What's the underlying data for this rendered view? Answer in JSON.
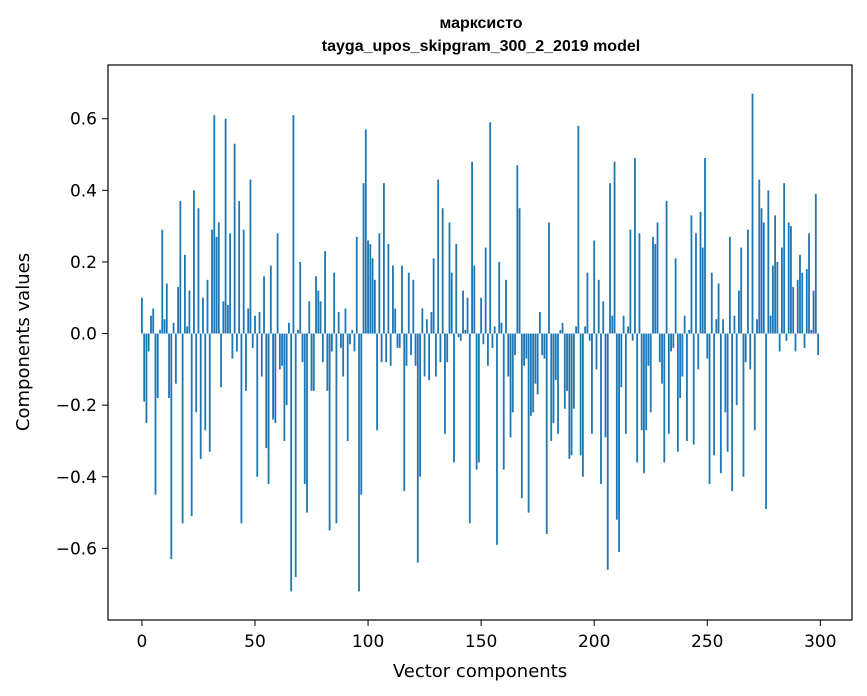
{
  "chart_data": {
    "type": "bar",
    "title": "марксисто",
    "subtitle": "tayga_upos_skipgram_300_2_2019 model",
    "xlabel": "Vector components",
    "ylabel": "Components values",
    "xlim": [
      -15,
      314
    ],
    "ylim": [
      -0.8,
      0.75
    ],
    "xticks": [
      0,
      50,
      100,
      150,
      200,
      250,
      300
    ],
    "yticks": [
      0.6,
      0.4,
      0.2,
      0.0,
      -0.2,
      -0.4,
      -0.6
    ],
    "xtick_labels": [
      "0",
      "50",
      "100",
      "150",
      "200",
      "250",
      "300"
    ],
    "ytick_labels": [
      "0.6",
      "0.4",
      "0.2",
      "0.0",
      "−0.2",
      "−0.4",
      "−0.6"
    ],
    "bar_color": "#1f77b4",
    "x_start": 0,
    "values": [
      0.1,
      -0.19,
      -0.25,
      -0.05,
      0.05,
      0.07,
      -0.45,
      -0.18,
      0.01,
      0.29,
      0.04,
      0.14,
      -0.18,
      -0.63,
      0.03,
      -0.14,
      0.13,
      0.37,
      -0.53,
      0.22,
      0.02,
      0.12,
      -0.51,
      0.4,
      -0.22,
      0.35,
      -0.35,
      0.1,
      -0.27,
      0.15,
      -0.33,
      0.29,
      0.61,
      0.27,
      0.31,
      -0.15,
      0.09,
      0.6,
      0.08,
      0.28,
      -0.07,
      0.53,
      -0.05,
      0.37,
      -0.53,
      0.29,
      -0.16,
      0.07,
      0.43,
      -0.04,
      0.05,
      -0.4,
      0.06,
      -0.12,
      0.16,
      -0.32,
      -0.42,
      0.19,
      -0.24,
      -0.25,
      0.28,
      -0.1,
      -0.09,
      -0.3,
      -0.2,
      0.03,
      -0.72,
      0.61,
      -0.68,
      0.01,
      0.2,
      -0.08,
      -0.42,
      -0.5,
      0.09,
      -0.16,
      -0.16,
      0.16,
      0.12,
      0.09,
      -0.08,
      0.23,
      -0.16,
      -0.55,
      -0.05,
      0.17,
      -0.53,
      0.06,
      -0.04,
      -0.12,
      0.07,
      -0.3,
      -0.03,
      0.01,
      -0.05,
      0.27,
      -0.72,
      -0.45,
      0.42,
      0.57,
      0.26,
      0.25,
      0.21,
      0.15,
      -0.27,
      0.28,
      -0.08,
      0.42,
      -0.08,
      0.25,
      -0.09,
      0.19,
      0.07,
      -0.04,
      -0.04,
      0.19,
      -0.44,
      -0.09,
      0.17,
      -0.06,
      0.15,
      -0.09,
      -0.64,
      -0.4,
      0.07,
      -0.12,
      0.04,
      -0.13,
      0.06,
      0.21,
      -0.12,
      0.43,
      -0.08,
      0.35,
      -0.28,
      -0.08,
      0.31,
      0.17,
      -0.36,
      0.25,
      -0.01,
      -0.02,
      0.12,
      0.01,
      0.1,
      -0.53,
      0.48,
      0.19,
      -0.38,
      -0.36,
      0.1,
      -0.03,
      0.24,
      -0.09,
      0.59,
      -0.04,
      0.02,
      -0.59,
      0.2,
      0.03,
      -0.38,
      0.15,
      -0.12,
      -0.29,
      -0.22,
      -0.06,
      0.47,
      0.35,
      -0.46,
      -0.09,
      -0.07,
      -0.5,
      -0.23,
      -0.22,
      -0.14,
      -0.17,
      0.06,
      -0.06,
      -0.07,
      -0.56,
      0.31,
      -0.3,
      -0.25,
      -0.13,
      -0.28,
      0.01,
      0.03,
      -0.21,
      -0.16,
      -0.35,
      -0.34,
      -0.21,
      0.02,
      0.58,
      -0.34,
      -0.4,
      0.02,
      0.17,
      -0.02,
      -0.28,
      0.26,
      -0.1,
      0.15,
      -0.42,
      0.09,
      -0.29,
      -0.66,
      0.42,
      0.05,
      0.48,
      -0.52,
      -0.61,
      -0.15,
      0.05,
      -0.28,
      0.02,
      0.29,
      -0.02,
      0.49,
      -0.36,
      0.28,
      -0.27,
      -0.39,
      -0.27,
      -0.09,
      -0.22,
      0.27,
      0.25,
      0.31,
      -0.08,
      -0.14,
      -0.36,
      0.37,
      -0.28,
      -0.05,
      -0.04,
      0.21,
      -0.33,
      -0.18,
      -0.12,
      0.05,
      -0.3,
      0.01,
      0.33,
      -0.31,
      0.28,
      -0.1,
      0.34,
      0.24,
      0.49,
      -0.07,
      -0.42,
      0.17,
      -0.34,
      0.04,
      0.14,
      -0.39,
      0.04,
      -0.22,
      -0.33,
      0.27,
      -0.44,
      0.05,
      -0.2,
      0.12,
      0.24,
      -0.4,
      -0.08,
      0.29,
      -0.1,
      0.67,
      -0.27,
      0.04,
      0.43,
      0.35,
      0.31,
      -0.49,
      0.4,
      0.05,
      0.19,
      0.33,
      0.2,
      -0.05,
      0.24,
      0.42,
      -0.02,
      0.31,
      0.3,
      0.13,
      -0.05,
      0.15,
      0.22,
      0.17,
      -0.04,
      0.18,
      0.28,
      0.01,
      0.12,
      0.39,
      -0.06
    ]
  }
}
